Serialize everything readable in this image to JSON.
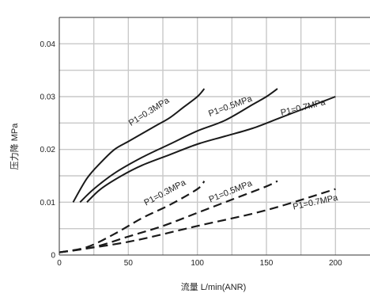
{
  "chart_data": {
    "type": "line",
    "title": "",
    "xlabel": "流量 L/min(ANR)",
    "ylabel": "压力降 MPa",
    "xlim": [
      0,
      225
    ],
    "ylim": [
      0,
      0.045
    ],
    "x_ticks": [
      0,
      50,
      100,
      150,
      200
    ],
    "x_tick_labels": [
      "0",
      "50",
      "100",
      "150",
      "200"
    ],
    "y_ticks": [
      0,
      0.01,
      0.02,
      0.03,
      0.04
    ],
    "y_tick_labels": [
      "0",
      "0.01",
      "0.02",
      "0.03",
      "0.04"
    ],
    "grid": true,
    "series": [
      {
        "name": "P1=0.3MPa",
        "group": "upper",
        "line_style": "solid",
        "x": [
          10,
          20,
          30,
          40,
          50,
          60,
          70,
          80,
          90,
          100,
          105
        ],
        "y": [
          0.01,
          0.0145,
          0.0175,
          0.02,
          0.0215,
          0.023,
          0.0245,
          0.026,
          0.028,
          0.03,
          0.0315
        ]
      },
      {
        "name": "P1=0.5MPa",
        "group": "upper",
        "line_style": "solid",
        "x": [
          15,
          25,
          40,
          60,
          80,
          100,
          120,
          140,
          150,
          158
        ],
        "y": [
          0.01,
          0.0125,
          0.0155,
          0.0185,
          0.021,
          0.0235,
          0.0255,
          0.0285,
          0.03,
          0.0315
        ]
      },
      {
        "name": "P1=0.7MPa",
        "group": "upper",
        "line_style": "solid",
        "x": [
          20,
          30,
          45,
          60,
          80,
          100,
          120,
          140,
          160,
          180,
          200
        ],
        "y": [
          0.01,
          0.0125,
          0.015,
          0.017,
          0.019,
          0.021,
          0.0225,
          0.024,
          0.026,
          0.028,
          0.03
        ]
      },
      {
        "name": "P1=0.3MPa",
        "group": "lower",
        "line_style": "dashed",
        "x": [
          0,
          20,
          40,
          60,
          80,
          100,
          105
        ],
        "y": [
          0.0005,
          0.0015,
          0.004,
          0.007,
          0.0095,
          0.0125,
          0.014
        ]
      },
      {
        "name": "P1=0.5MPa",
        "group": "lower",
        "line_style": "dashed",
        "x": [
          0,
          25,
          50,
          75,
          100,
          125,
          150,
          158
        ],
        "y": [
          0.0005,
          0.0015,
          0.0035,
          0.0055,
          0.008,
          0.0105,
          0.013,
          0.014
        ]
      },
      {
        "name": "P1=0.7MPa",
        "group": "lower",
        "line_style": "dashed",
        "x": [
          0,
          50,
          100,
          150,
          200
        ],
        "y": [
          0.0005,
          0.0025,
          0.0055,
          0.0085,
          0.0125
        ]
      }
    ],
    "annotations": [
      {
        "text": "P1=0.3MPa",
        "x": 80,
        "y": 0.029,
        "angle": -32,
        "series_index": 0
      },
      {
        "text": "P1=0.5MPa",
        "x": 140,
        "y": 0.0292,
        "angle": -20,
        "series_index": 1
      },
      {
        "text": "P1=0.7MPa",
        "x": 193,
        "y": 0.0285,
        "angle": -14,
        "series_index": 2
      },
      {
        "text": "P1=0.3MPa",
        "x": 92,
        "y": 0.0134,
        "angle": -28,
        "series_index": 3
      },
      {
        "text": "P1=0.5MPa",
        "x": 140,
        "y": 0.0132,
        "angle": -22,
        "series_index": 4
      },
      {
        "text": "P1=0.7MPa",
        "x": 202,
        "y": 0.0104,
        "angle": -12,
        "series_index": 5
      }
    ]
  }
}
